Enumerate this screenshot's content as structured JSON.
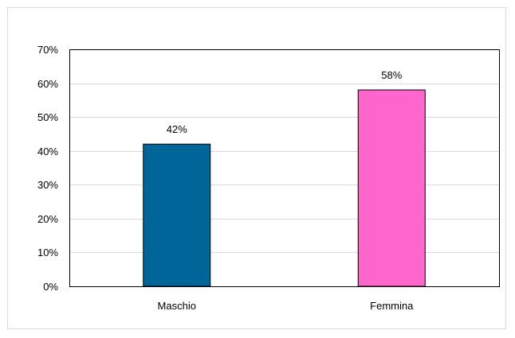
{
  "chart_data": {
    "type": "bar",
    "categories": [
      "Maschio",
      "Femmina"
    ],
    "values": [
      42,
      58
    ],
    "data_labels": [
      "42%",
      "58%"
    ],
    "bar_colors": [
      "#006699",
      "#ff66cc"
    ],
    "ylim": [
      0,
      70
    ],
    "yticks": [
      0,
      10,
      20,
      30,
      40,
      50,
      60,
      70
    ],
    "ytick_labels": [
      "0%",
      "10%",
      "20%",
      "30%",
      "40%",
      "50%",
      "60%",
      "70%"
    ],
    "grid": true,
    "legend": "none"
  }
}
